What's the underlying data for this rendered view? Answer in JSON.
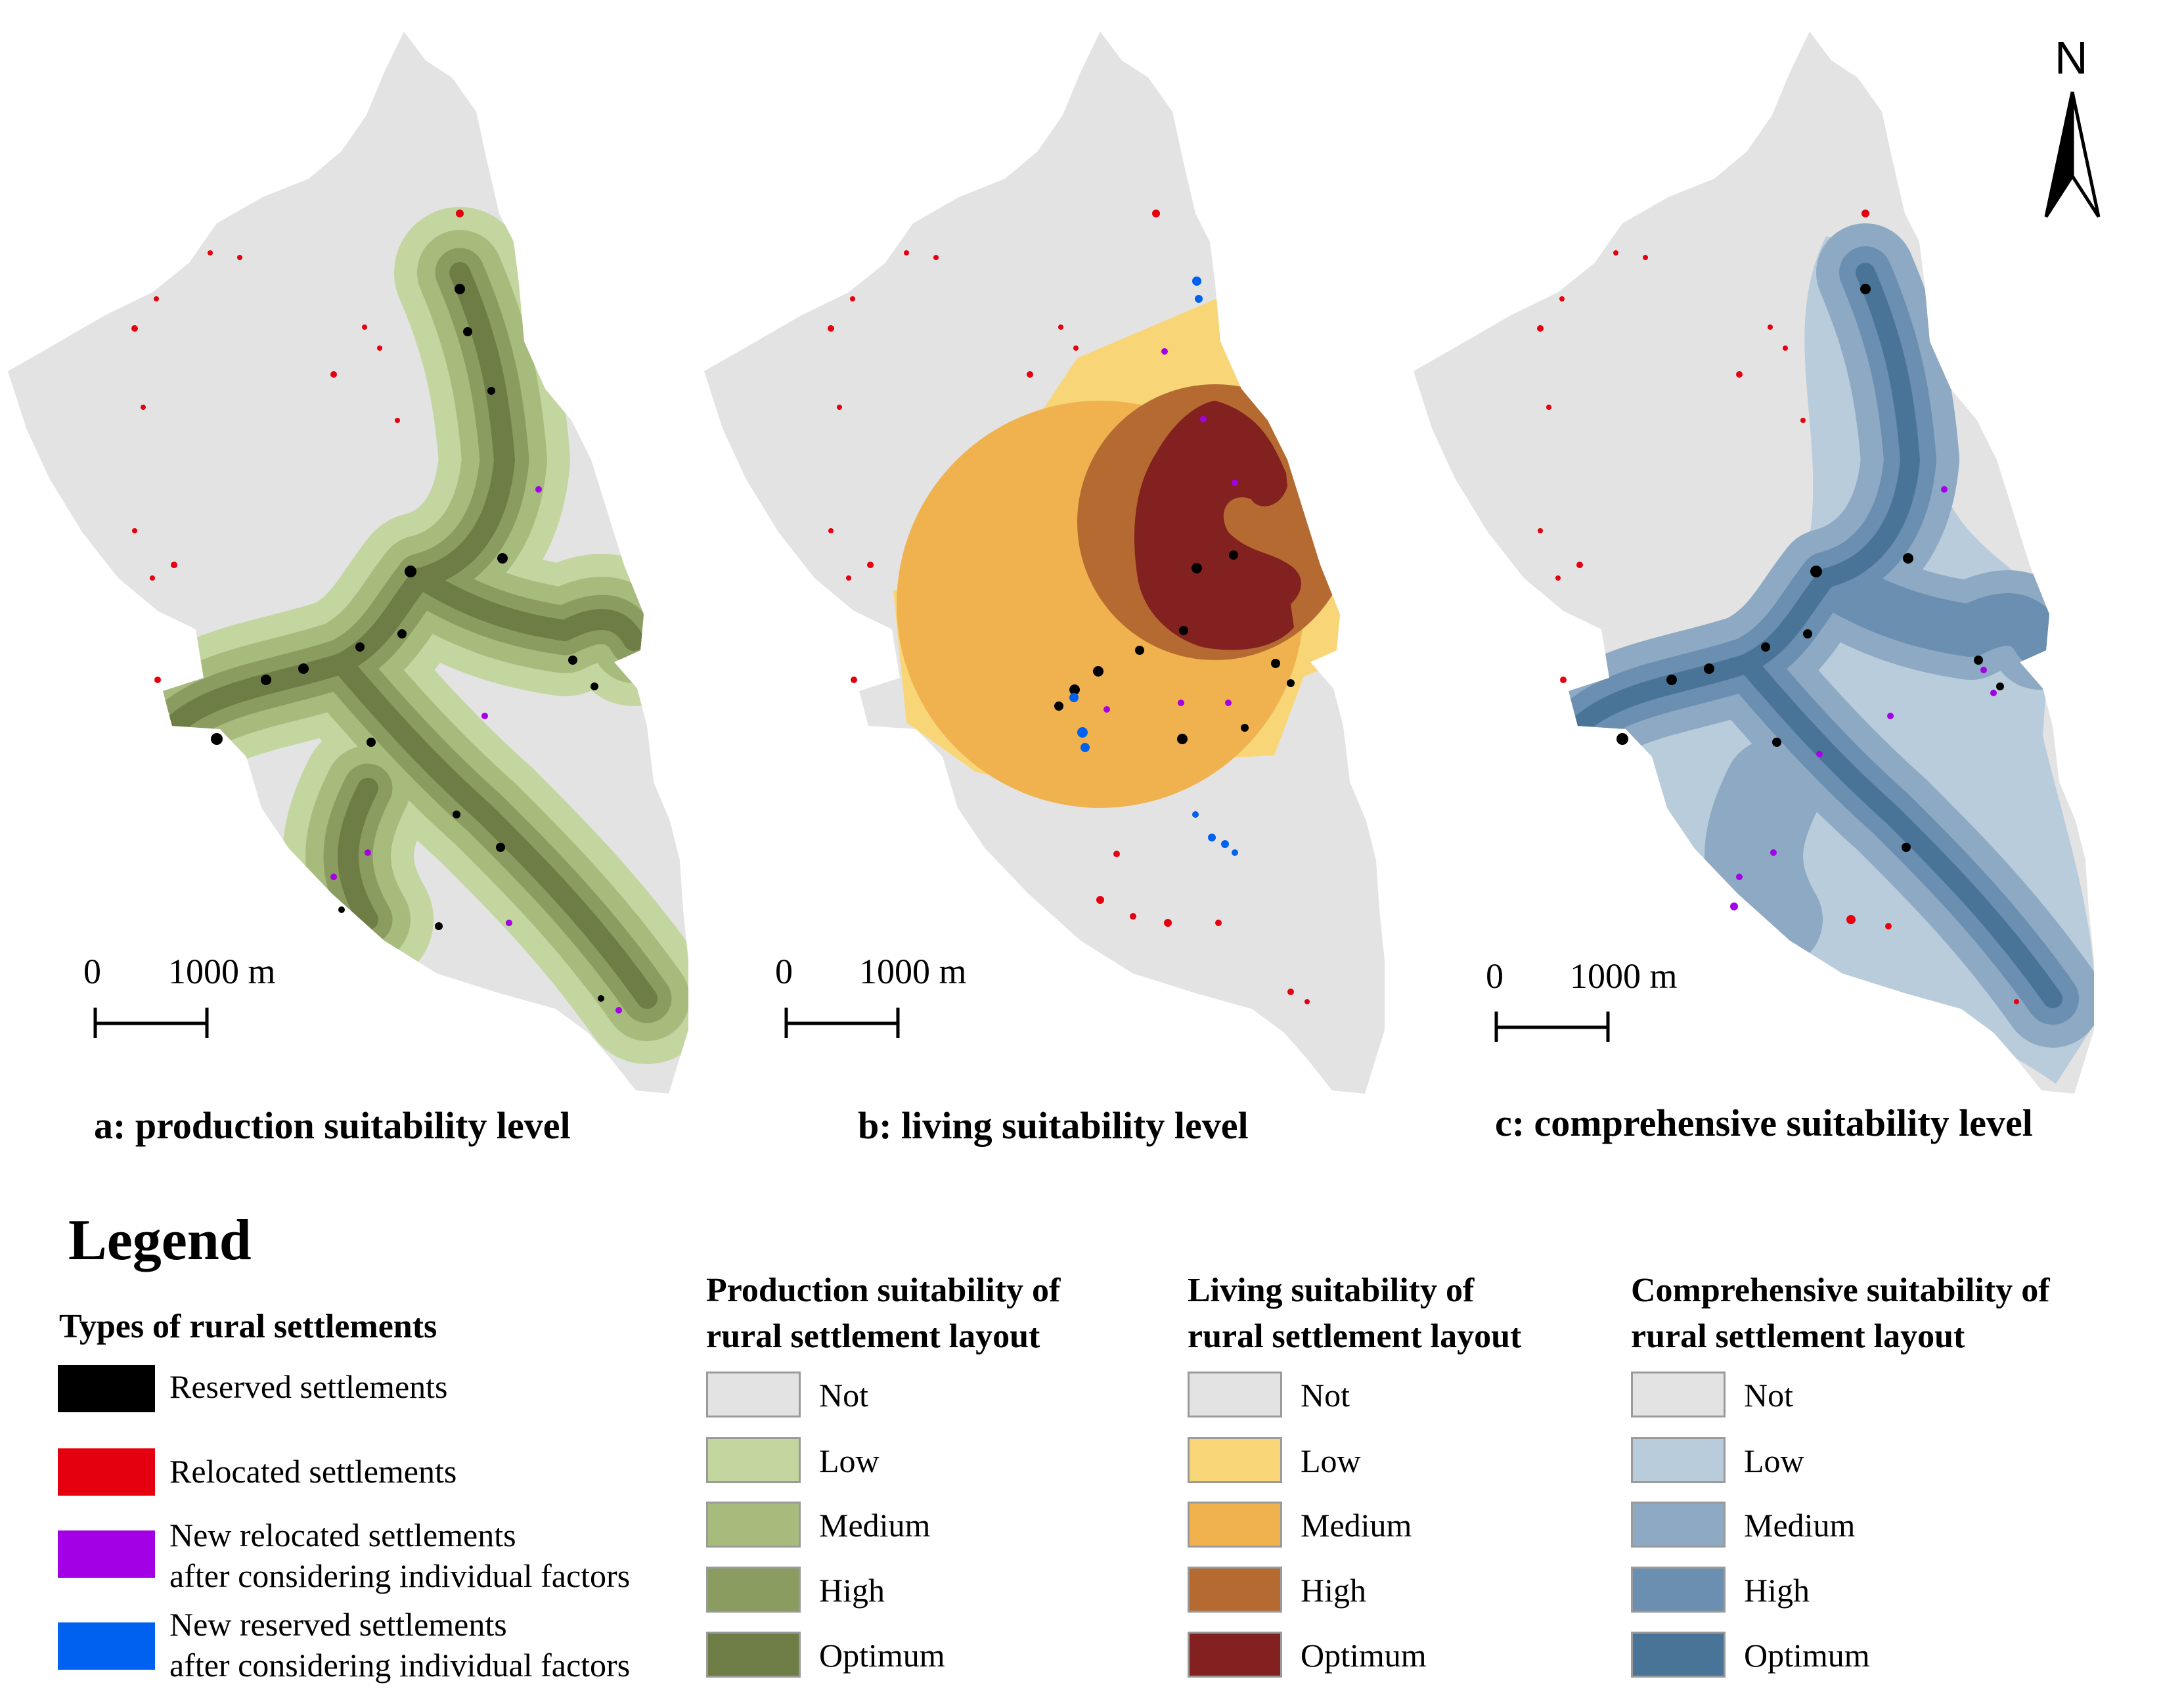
{
  "panels": [
    {
      "id": "a",
      "caption": "a: production suitability level",
      "scale_zero": "0",
      "scale_distance": "1000 m",
      "palette": [
        "#e3e3e3",
        "#c4d6a0",
        "#a7bb7d",
        "#8a9c60",
        "#6e7d46"
      ]
    },
    {
      "id": "b",
      "caption": "b: living suitability level",
      "scale_zero": "0",
      "scale_distance": "1000 m",
      "palette": [
        "#e3e3e3",
        "#f8d678",
        "#f0b24e",
        "#b56a32",
        "#82211f"
      ]
    },
    {
      "id": "c",
      "caption": "c: comprehensive suitability level",
      "scale_zero": "0",
      "scale_distance": "1000 m",
      "palette": [
        "#e3e3e3",
        "#b8ccdb",
        "#8ea9c4",
        "#6a8fb0",
        "#4a7497"
      ]
    }
  ],
  "north_label": "N",
  "legend": {
    "title": "Legend",
    "types_title": "Types of rural settlements",
    "types": [
      {
        "line1": "Reserved settlements",
        "line2": "",
        "color": "#000000"
      },
      {
        "line1": "Relocated settlements",
        "line2": "",
        "color": "#e5000f"
      },
      {
        "line1": "New relocated settlements",
        "line2": "after considering individual factors",
        "color": "#a400e6"
      },
      {
        "line1": "New reserved settlements",
        "line2": "after considering individual factors",
        "color": "#0061f0"
      }
    ],
    "groups": [
      {
        "title_line1": "Production suitability of",
        "title_line2": "rural settlement layout",
        "items": [
          {
            "label": "Not",
            "color": "#e3e3e3"
          },
          {
            "label": "Low",
            "color": "#c4d6a0"
          },
          {
            "label": "Medium",
            "color": "#a7bb7d"
          },
          {
            "label": "High",
            "color": "#8a9c60"
          },
          {
            "label": "Optimum",
            "color": "#6e7d46"
          }
        ]
      },
      {
        "title_line1": "Living suitability of",
        "title_line2": "rural settlement layout",
        "items": [
          {
            "label": "Not",
            "color": "#e3e3e3"
          },
          {
            "label": "Low",
            "color": "#f8d678"
          },
          {
            "label": "Medium",
            "color": "#f0b24e"
          },
          {
            "label": "High",
            "color": "#b56a32"
          },
          {
            "label": "Optimum",
            "color": "#82211f"
          }
        ]
      },
      {
        "title_line1": "Comprehensive suitability of",
        "title_line2": "rural settlement layout",
        "items": [
          {
            "label": "Not",
            "color": "#e3e3e3"
          },
          {
            "label": "Low",
            "color": "#b8ccdb"
          },
          {
            "label": "Medium",
            "color": "#8ea9c4"
          },
          {
            "label": "High",
            "color": "#6a8fb0"
          },
          {
            "label": "Optimum",
            "color": "#4a7497"
          }
        ]
      }
    ]
  }
}
